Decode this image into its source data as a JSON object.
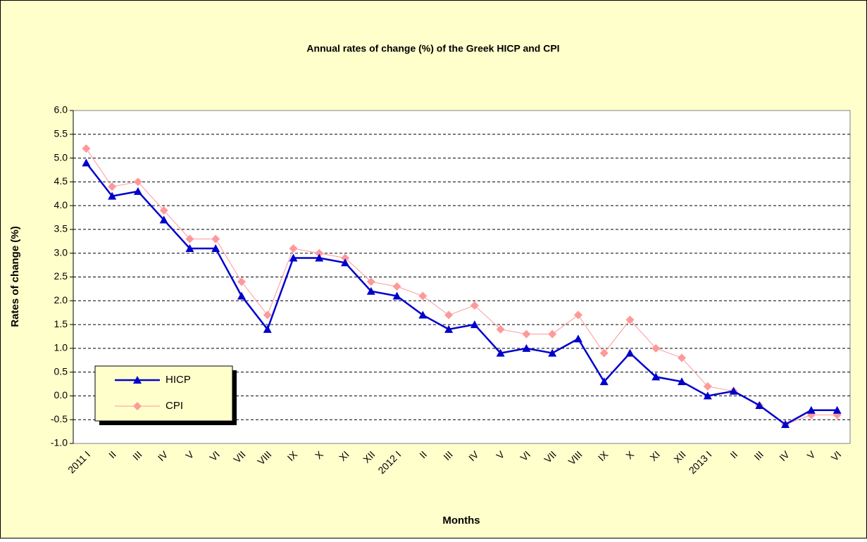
{
  "chart_data": {
    "type": "line",
    "title": "Annual rates of change (%) of the Greek HICP and CPI",
    "x_label": "Months",
    "y_label": "Rates of change (%)",
    "categories": [
      "2011 I",
      "II",
      "III",
      "IV",
      "V",
      "VI",
      "VII",
      "VIII",
      "IX",
      "X",
      "XI",
      "XII",
      "2012 I",
      "II",
      "III",
      "IV",
      "V",
      "VI",
      "VII",
      "VIII",
      "IX",
      "X",
      "XI",
      "XII",
      "2013 I",
      "II",
      "III",
      "IV",
      "V",
      "VI"
    ],
    "series": [
      {
        "name": "HICP",
        "color": "#0000cc",
        "marker": "triangle",
        "values": [
          4.9,
          4.2,
          4.3,
          3.7,
          3.1,
          3.1,
          2.1,
          1.4,
          2.9,
          2.9,
          2.8,
          2.2,
          2.1,
          1.7,
          1.4,
          1.5,
          0.9,
          1.0,
          0.9,
          1.2,
          0.3,
          0.9,
          0.4,
          0.3,
          0.0,
          0.1,
          -0.2,
          -0.6,
          -0.3,
          -0.3
        ]
      },
      {
        "name": "CPI",
        "color": "#ff9999",
        "marker": "diamond",
        "values": [
          5.2,
          4.4,
          4.5,
          3.9,
          3.3,
          3.3,
          2.4,
          1.7,
          3.1,
          3.0,
          2.9,
          2.4,
          2.3,
          2.1,
          1.7,
          1.9,
          1.4,
          1.3,
          1.3,
          1.7,
          0.9,
          1.6,
          1.0,
          0.8,
          0.2,
          0.1,
          -0.2,
          -0.6,
          -0.4,
          -0.4
        ]
      }
    ],
    "ylim": [
      -1,
      6
    ],
    "yticks": [
      {
        "value": -1,
        "label": "-1.0"
      },
      -0.5,
      {
        "value": 0,
        "label": "0.0"
      },
      0.5,
      {
        "value": 1,
        "label": "1.0"
      },
      1.5,
      {
        "value": 2,
        "label": "2.0"
      },
      2.5,
      {
        "value": 3,
        "label": "3.0"
      },
      3.5,
      {
        "value": 4,
        "label": "4.0"
      },
      4.5,
      {
        "value": 5,
        "label": "5.0"
      },
      5.5,
      {
        "value": 6,
        "label": "6.0"
      }
    ],
    "grid": true,
    "legend": "lower left"
  }
}
